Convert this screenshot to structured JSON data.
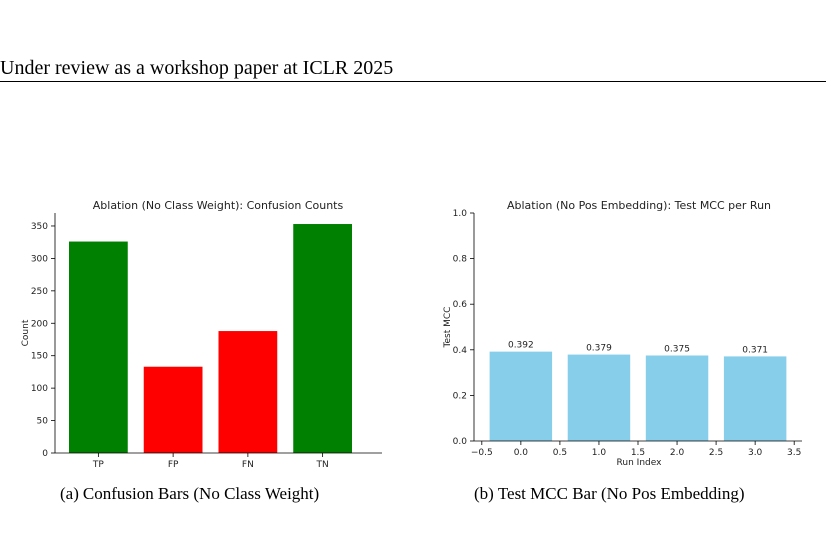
{
  "page": {
    "header": "Under review as a workshop paper at ICLR 2025"
  },
  "figures": [
    {
      "label": "(a)",
      "caption": "Confusion Bars (No Class Weight)"
    },
    {
      "label": "(b)",
      "caption": "Test MCC Bar (No Pos Embedding)"
    }
  ],
  "chart_data": [
    {
      "type": "bar",
      "title": "Ablation (No Class Weight): Confusion Counts",
      "xlabel": "",
      "ylabel": "Count",
      "categories": [
        "TP",
        "FP",
        "FN",
        "TN"
      ],
      "values": [
        326,
        133,
        188,
        353
      ],
      "colors": [
        "#008000",
        "#ff0000",
        "#ff0000",
        "#008000"
      ],
      "ylim": [
        0,
        370
      ],
      "yticks": [
        0,
        50,
        100,
        150,
        200,
        250,
        300,
        350
      ],
      "grid": false
    },
    {
      "type": "bar",
      "title": "Ablation (No Pos Embedding): Test MCC per Run",
      "xlabel": "Run Index",
      "ylabel": "Test MCC",
      "x": [
        0,
        1,
        2,
        3
      ],
      "values": [
        0.392,
        0.379,
        0.375,
        0.371
      ],
      "data_labels": [
        "0.392",
        "0.379",
        "0.375",
        "0.371"
      ],
      "color": "#87ceeb",
      "xlim": [
        -0.5,
        3.5
      ],
      "ylim": [
        0,
        1.0
      ],
      "xticks": [
        "−0.5",
        "0.0",
        "0.5",
        "1.0",
        "1.5",
        "2.0",
        "2.5",
        "3.0",
        "3.5"
      ],
      "xtick_values": [
        -0.5,
        0,
        0.5,
        1.0,
        1.5,
        2.0,
        2.5,
        3.0,
        3.5
      ],
      "yticks": [
        "0.0",
        "0.2",
        "0.4",
        "0.6",
        "0.8",
        "1.0"
      ],
      "ytick_values": [
        0,
        0.2,
        0.4,
        0.6,
        0.8,
        1.0
      ],
      "grid": false
    }
  ]
}
